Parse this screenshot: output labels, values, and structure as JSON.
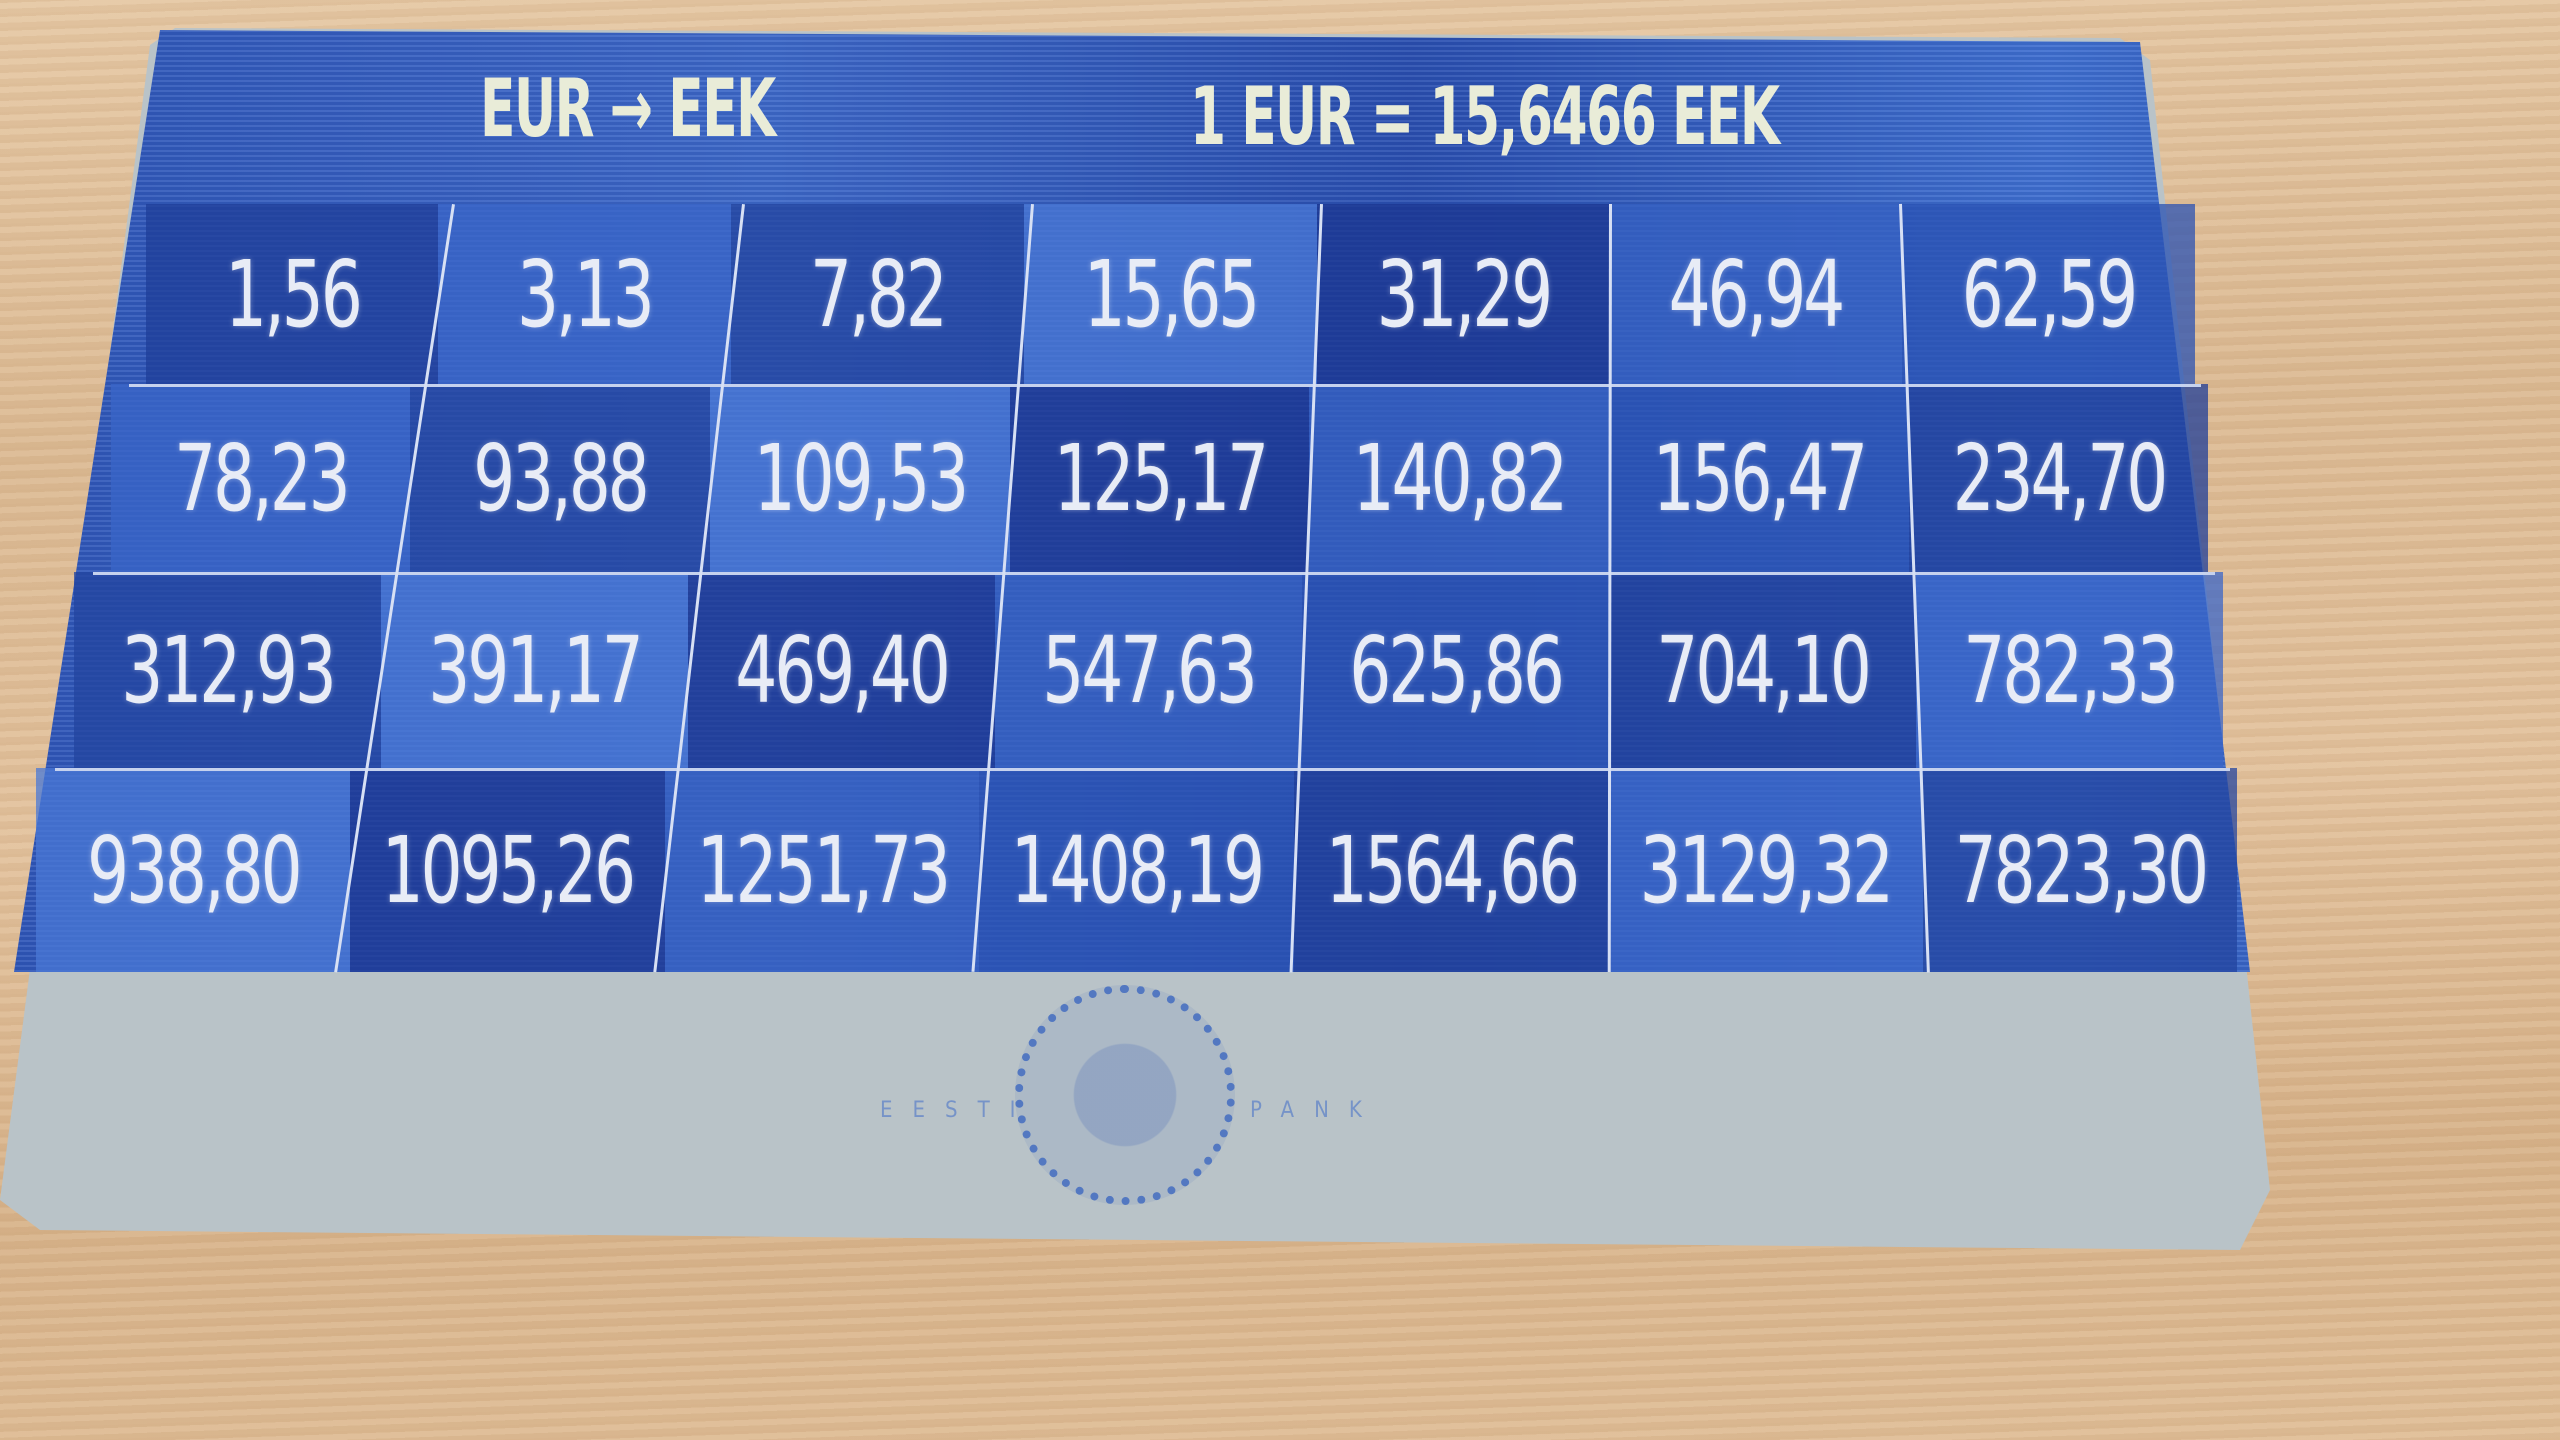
{
  "card": {
    "header_left": "EUR → EEK",
    "header_right": "1 EUR = 15,6466 EEK",
    "rows": [
      [
        "1,56",
        "3,13",
        "7,82",
        "15,65",
        "31,29",
        "46,94",
        "62,59"
      ],
      [
        "78,23",
        "93,88",
        "109,53",
        "125,17",
        "140,82",
        "156,47",
        "234,70"
      ],
      [
        "312,93",
        "391,17",
        "469,40",
        "547,63",
        "625,86",
        "704,10",
        "782,33"
      ],
      [
        "938,80",
        "1095,26",
        "1251,73",
        "1408,19",
        "1564,66",
        "3129,32",
        "7823,30"
      ]
    ],
    "seal_lettering": "EESTI PANK",
    "colors": {
      "card_blue": "#2f56b8",
      "text": "#e8ecf6",
      "card_bottom": "#b9c3c8",
      "wood": "#e0c29e"
    }
  }
}
